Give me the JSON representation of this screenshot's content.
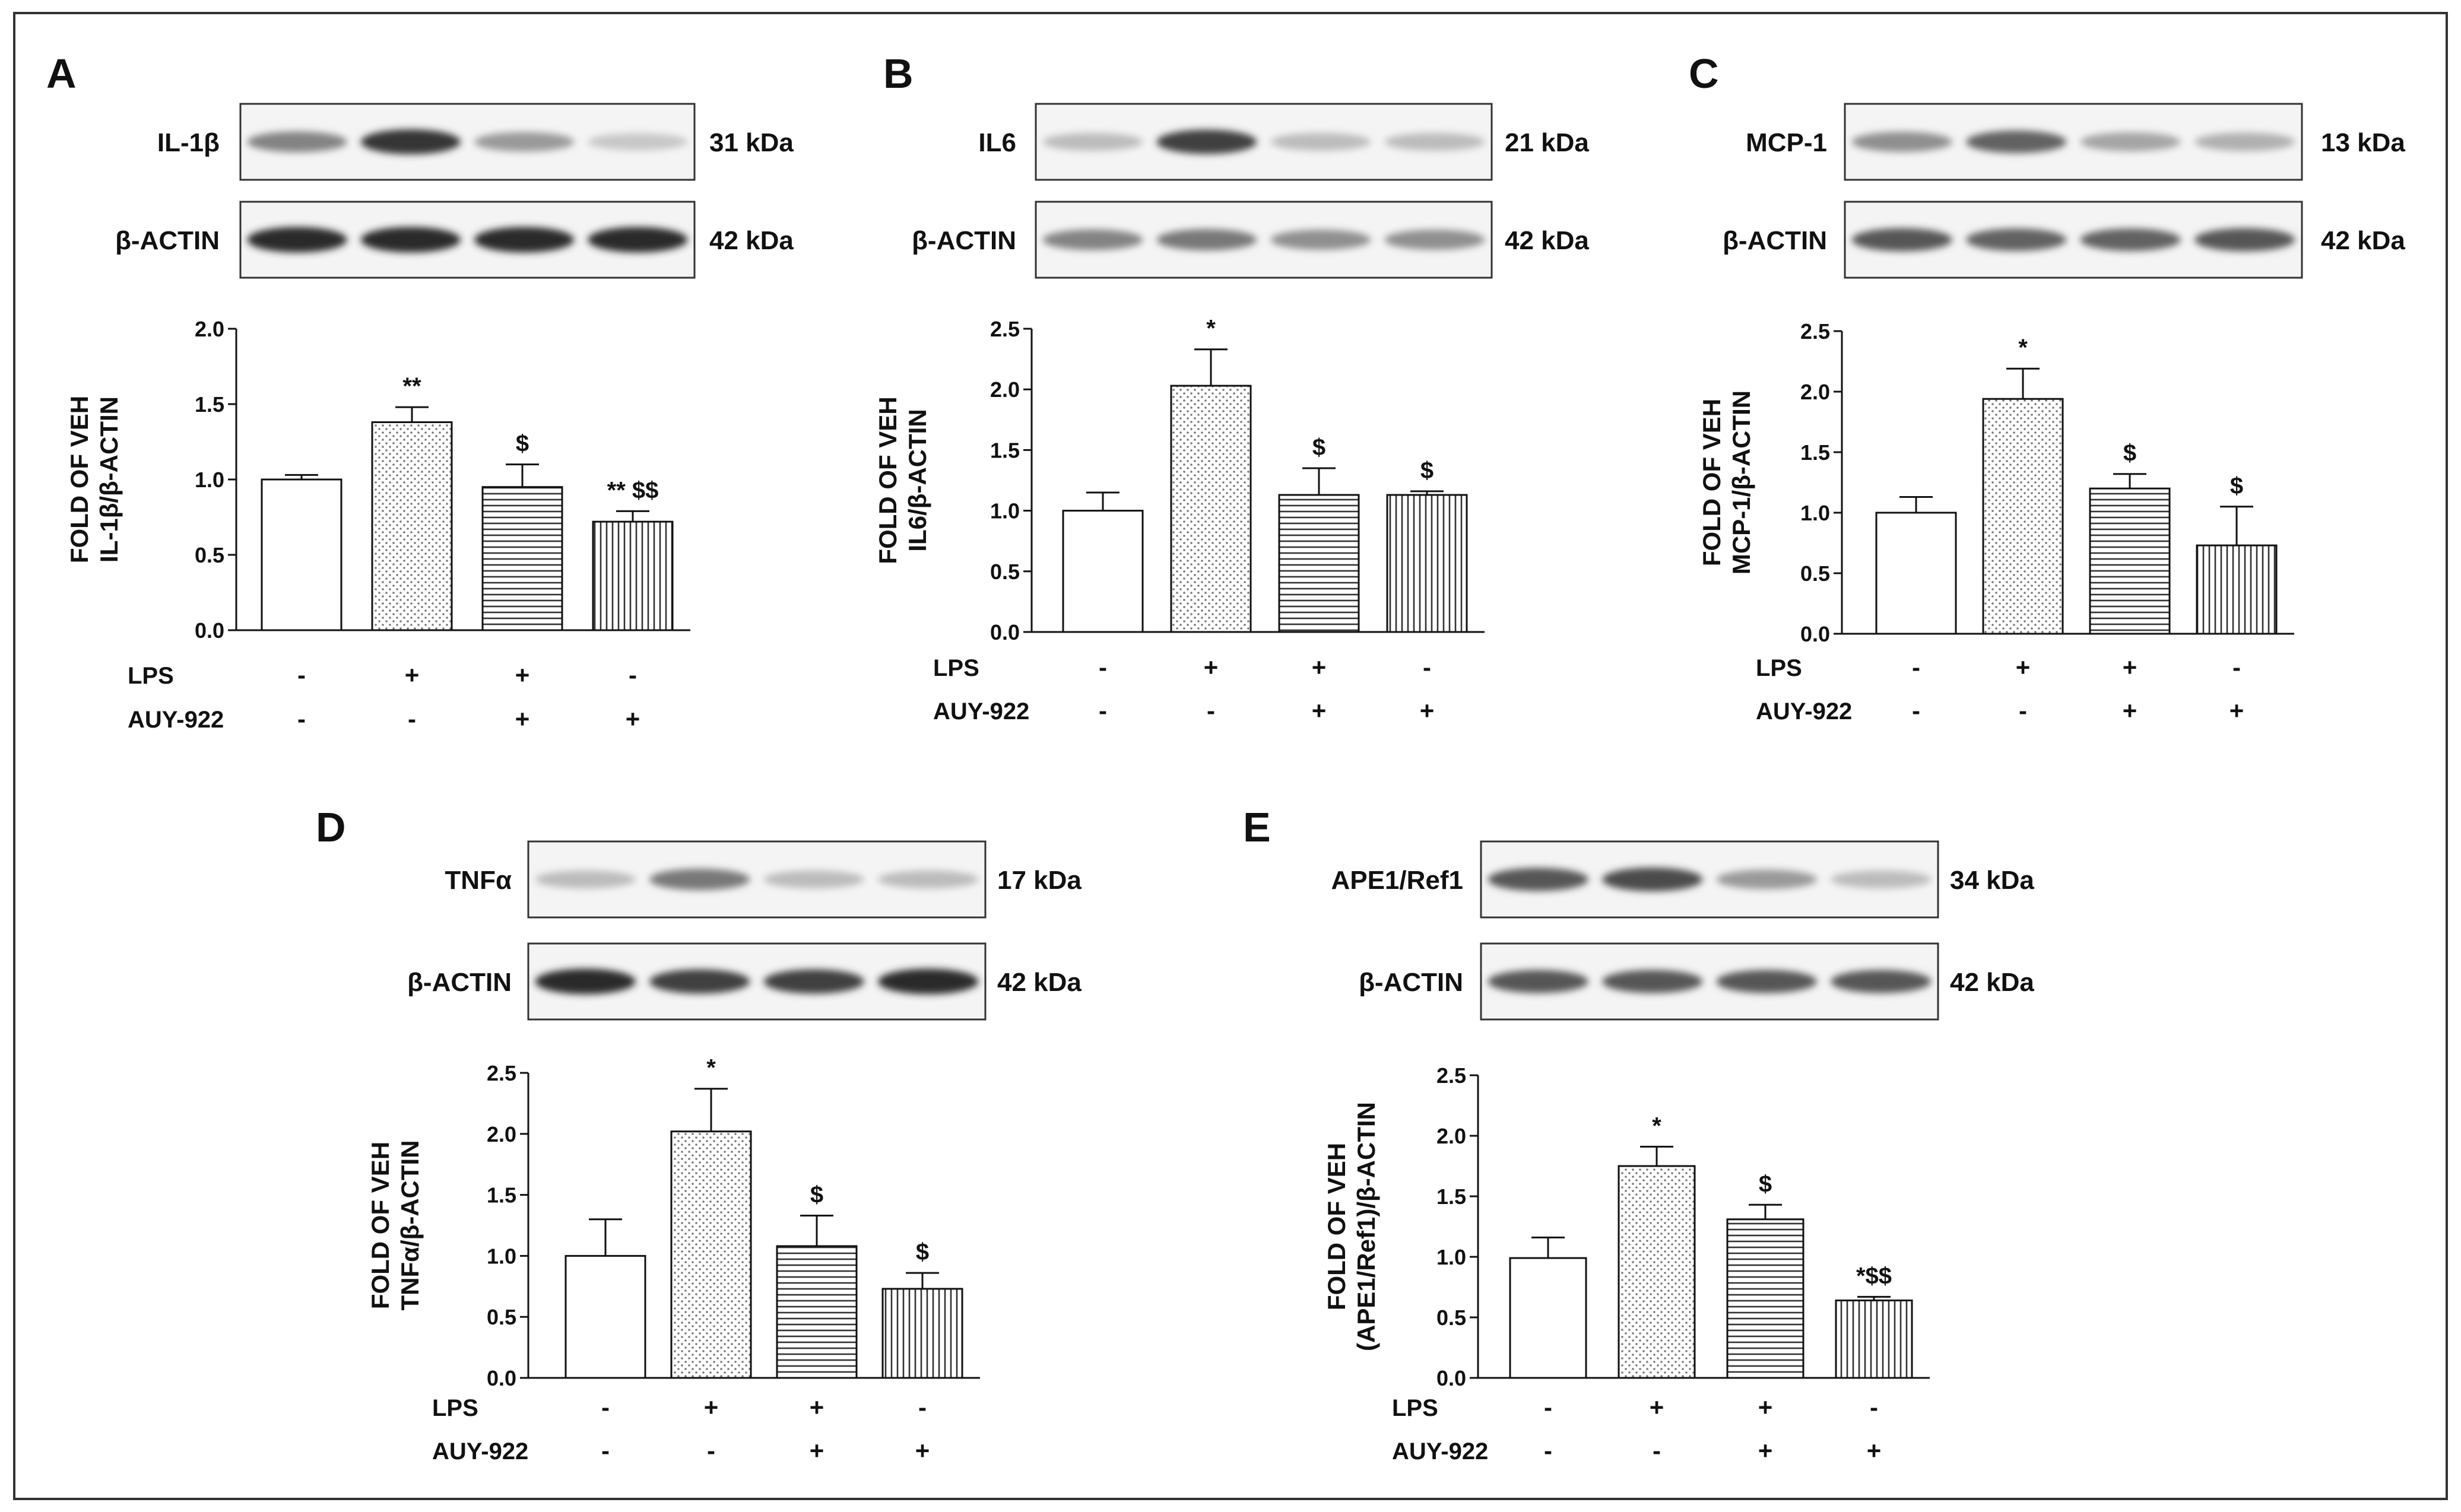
{
  "figure": {
    "border_color": "#333333"
  },
  "panels": [
    {
      "letter": "A",
      "target": "IL-1β",
      "target_kda": "31 kDa",
      "loading": "β-ACTIN",
      "loading_kda": "42 kDa",
      "target_band_intensity": [
        0.55,
        0.9,
        0.45,
        0.25
      ],
      "loading_band_intensity": [
        0.95,
        0.95,
        0.95,
        0.95
      ],
      "ylabel1": "FOLD OF VEH",
      "ylabel2": "IL-1β/β-ACTIN",
      "row1_label": "LPS",
      "row1_signs": [
        "-",
        "+",
        "+",
        "-"
      ],
      "row2_label": "AUY-922",
      "row2_signs": [
        "-",
        "-",
        "+",
        "+"
      ]
    },
    {
      "letter": "B",
      "target": "IL6",
      "target_kda": "21 kDa",
      "loading": "β-ACTIN",
      "loading_kda": "42 kDa",
      "target_band_intensity": [
        0.3,
        0.85,
        0.3,
        0.3
      ],
      "loading_band_intensity": [
        0.55,
        0.6,
        0.5,
        0.5
      ],
      "ylabel1": "FOLD OF VEH",
      "ylabel2": "IL6/β-ACTIN",
      "row1_label": "LPS",
      "row1_signs": [
        "-",
        "+",
        "+",
        "-"
      ],
      "row2_label": "AUY-922",
      "row2_signs": [
        "-",
        "-",
        "+",
        "+"
      ]
    },
    {
      "letter": "C",
      "target": "MCP-1",
      "target_kda": "13 kDa",
      "loading": "β-ACTIN",
      "loading_kda": "42 kDa",
      "target_band_intensity": [
        0.5,
        0.7,
        0.4,
        0.35
      ],
      "loading_band_intensity": [
        0.75,
        0.7,
        0.7,
        0.75
      ],
      "ylabel1": "FOLD OF VEH",
      "ylabel2": "MCP-1/β-ACTIN",
      "row1_label": "LPS",
      "row1_signs": [
        "-",
        "+",
        "+",
        "-"
      ],
      "row2_label": "AUY-922",
      "row2_signs": [
        "-",
        "-",
        "+",
        "+"
      ]
    },
    {
      "letter": "D",
      "target": "TNFα",
      "target_kda": "17 kDa",
      "loading": "β-ACTIN",
      "loading_kda": "42 kDa",
      "target_band_intensity": [
        0.3,
        0.6,
        0.3,
        0.3
      ],
      "loading_band_intensity": [
        0.95,
        0.85,
        0.85,
        0.95
      ],
      "ylabel1": "FOLD OF VEH",
      "ylabel2": "TNFα/β-ACTIN",
      "row1_label": "LPS",
      "row1_signs": [
        "-",
        "+",
        "+",
        "-"
      ],
      "row2_label": "AUY-922",
      "row2_signs": [
        "-",
        "-",
        "+",
        "+"
      ]
    },
    {
      "letter": "E",
      "target": "APE1/Ref1",
      "target_kda": "34 kDa",
      "loading": "β-ACTIN",
      "loading_kda": "42 kDa",
      "target_band_intensity": [
        0.75,
        0.8,
        0.45,
        0.3
      ],
      "loading_band_intensity": [
        0.75,
        0.75,
        0.75,
        0.75
      ],
      "ylabel1": "FOLD OF VEH",
      "ylabel2": "(APE1/Ref1)/β-ACTIN",
      "row1_label": "LPS",
      "row1_signs": [
        "-",
        "+",
        "+",
        "-"
      ],
      "row2_label": "AUY-922",
      "row2_signs": [
        "-",
        "-",
        "+",
        "+"
      ]
    }
  ],
  "chart_data": [
    {
      "type": "bar",
      "panel": "A",
      "ylim": [
        0,
        2.0
      ],
      "yticks": [
        "0.0",
        "0.5",
        "1.0",
        "1.5",
        "2.0"
      ],
      "values": [
        1.0,
        1.38,
        0.95,
        0.72
      ],
      "errors": [
        0.03,
        0.1,
        0.15,
        0.07
      ],
      "annotations": [
        "",
        "**",
        "$",
        "** $$"
      ],
      "patterns": [
        "open",
        "dots",
        "hlines",
        "vlines"
      ]
    },
    {
      "type": "bar",
      "panel": "B",
      "ylim": [
        0,
        2.5
      ],
      "yticks": [
        "0.0",
        "0.5",
        "1.0",
        "1.5",
        "2.0",
        "2.5"
      ],
      "values": [
        1.0,
        2.03,
        1.13,
        1.13
      ],
      "errors": [
        0.15,
        0.3,
        0.22,
        0.03
      ],
      "annotations": [
        "",
        "*",
        "$",
        "$"
      ],
      "patterns": [
        "open",
        "dots",
        "hlines",
        "vlines"
      ]
    },
    {
      "type": "bar",
      "panel": "C",
      "ylim": [
        0,
        2.5
      ],
      "yticks": [
        "0.0",
        "0.5",
        "1.0",
        "1.5",
        "2.0",
        "2.5"
      ],
      "values": [
        1.0,
        1.94,
        1.2,
        0.73
      ],
      "errors": [
        0.13,
        0.25,
        0.12,
        0.32
      ],
      "annotations": [
        "",
        "*",
        "$",
        "$"
      ],
      "patterns": [
        "open",
        "dots",
        "hlines",
        "vlines"
      ]
    },
    {
      "type": "bar",
      "panel": "D",
      "ylim": [
        0,
        2.5
      ],
      "yticks": [
        "0.0",
        "0.5",
        "1.0",
        "1.5",
        "2.0",
        "2.5"
      ],
      "values": [
        1.0,
        2.02,
        1.08,
        0.73
      ],
      "errors": [
        0.3,
        0.35,
        0.25,
        0.13
      ],
      "annotations": [
        "",
        "*",
        "$",
        "$"
      ],
      "patterns": [
        "open",
        "dots",
        "hlines",
        "vlines"
      ]
    },
    {
      "type": "bar",
      "panel": "E",
      "ylim": [
        0,
        2.5
      ],
      "yticks": [
        "0.0",
        "0.5",
        "1.0",
        "1.5",
        "2.0",
        "2.5"
      ],
      "values": [
        0.99,
        1.75,
        1.31,
        0.64
      ],
      "errors": [
        0.17,
        0.16,
        0.12,
        0.03
      ],
      "annotations": [
        "",
        "*",
        "$",
        "*$$"
      ],
      "patterns": [
        "open",
        "dots",
        "hlines",
        "vlines"
      ]
    }
  ]
}
